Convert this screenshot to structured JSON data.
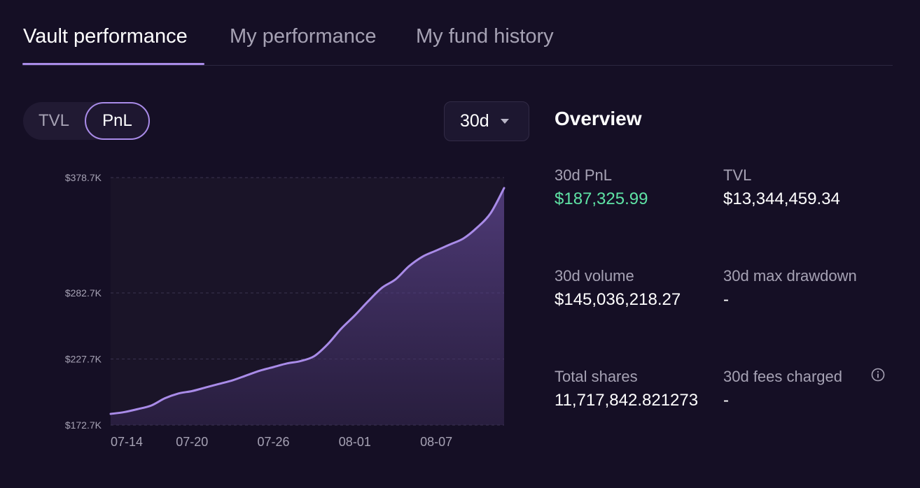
{
  "tabs": [
    {
      "label": "Vault performance"
    },
    {
      "label": "My performance"
    },
    {
      "label": "My fund history"
    }
  ],
  "toggle": {
    "options": [
      "TVL",
      "PnL"
    ],
    "selected": "PnL"
  },
  "range_select": {
    "value": "30d"
  },
  "overview": {
    "title": "Overview",
    "stats": [
      {
        "label": "30d PnL",
        "value": "$187,325.99",
        "color": "#5fe3a5"
      },
      {
        "label": "TVL",
        "value": "$13,344,459.34"
      },
      {
        "label": "30d volume",
        "value": "$145,036,218.27"
      },
      {
        "label": "30d max drawdown",
        "value": "-"
      },
      {
        "label": "Total shares",
        "value": "11,717,842.821273"
      },
      {
        "label": "30d fees charged",
        "value": "-",
        "icon": "info-icon"
      }
    ]
  },
  "colors": {
    "background": "#150f25",
    "plot_background": "#1a1428",
    "line": "#a98be8",
    "accent_green": "#5fe3a5"
  },
  "chart_data": {
    "type": "area",
    "ylim": [
      172.7,
      378.7
    ],
    "y_unit": "K USD",
    "y_ticks": [
      {
        "value": 378.7,
        "label": "$378.7K"
      },
      {
        "value": 282.7,
        "label": "$282.7K"
      },
      {
        "value": 227.7,
        "label": "$227.7K"
      },
      {
        "value": 172.7,
        "label": "$172.7K"
      }
    ],
    "x_ticks": [
      "07-14",
      "07-20",
      "07-26",
      "08-01",
      "08-07"
    ],
    "x": [
      "07-14",
      "07-15",
      "07-16",
      "07-17",
      "07-18",
      "07-19",
      "07-20",
      "07-21",
      "07-22",
      "07-23",
      "07-24",
      "07-25",
      "07-26",
      "07-27",
      "07-28",
      "07-29",
      "07-30",
      "07-31",
      "08-01",
      "08-02",
      "08-03",
      "08-04",
      "08-05",
      "08-06",
      "08-07",
      "08-08",
      "08-09",
      "08-10",
      "08-11",
      "08-12"
    ],
    "values": [
      182,
      183.5,
      186,
      189,
      195,
      199,
      201,
      204,
      207,
      210,
      214,
      218,
      221,
      224,
      226,
      230,
      240,
      253,
      264,
      276,
      287,
      294,
      305,
      313,
      318,
      323,
      328,
      337,
      349,
      370
    ],
    "grid": "horizontal dashed",
    "legend": "none"
  }
}
